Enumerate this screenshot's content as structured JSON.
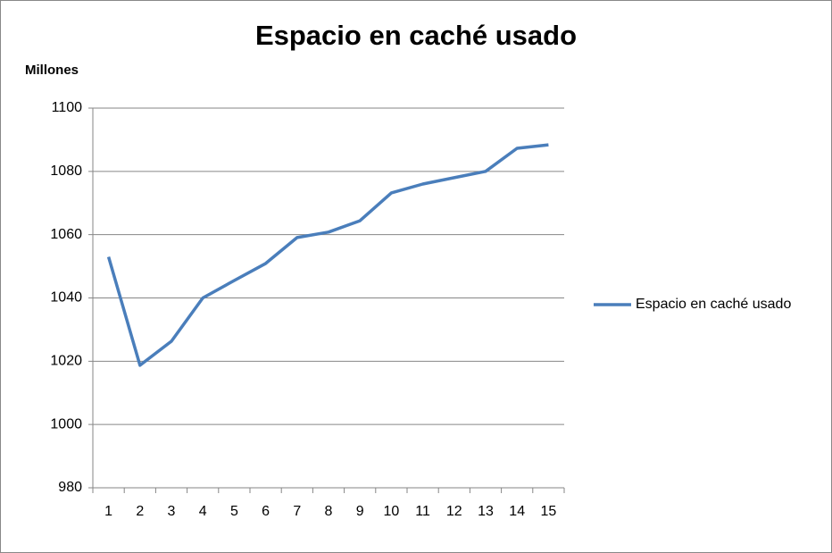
{
  "chart_data": {
    "type": "line",
    "title": "Espacio en caché usado",
    "y_label": "Millones",
    "categories": [
      "1",
      "2",
      "3",
      "4",
      "5",
      "6",
      "7",
      "8",
      "9",
      "10",
      "11",
      "12",
      "13",
      "14",
      "15"
    ],
    "series": [
      {
        "name": "Espacio en caché usado",
        "color": "#4a7ebb",
        "values": [
          1053,
          1018.7,
          1026.3,
          1040,
          1045.5,
          1050.9,
          1059.1,
          1060.8,
          1064.4,
          1073.2,
          1076,
          1078,
          1080,
          1087.3,
          1088.4
        ]
      }
    ],
    "ylim": [
      980,
      1100
    ],
    "yticks": [
      980,
      1000,
      1020,
      1040,
      1060,
      1080,
      1100
    ],
    "grid": true,
    "legend": "right"
  }
}
